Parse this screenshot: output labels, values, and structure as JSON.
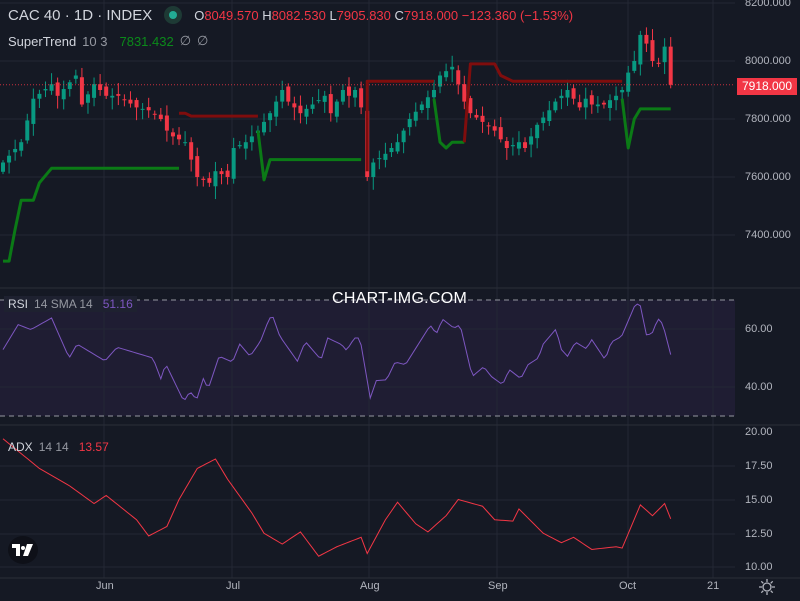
{
  "header": {
    "symbol": "CAC 40 · 1D · INDEX",
    "open_label": "O",
    "open": "8049.570",
    "high_label": "H",
    "high": "8082.530",
    "low_label": "L",
    "low": "7905.830",
    "close_label": "C",
    "close": "7918.000",
    "change": "−123.360 (−1.53%)"
  },
  "supertrend": {
    "name": "SuperTrend",
    "params": "10 3",
    "value": "7831.432",
    "extra1": "∅",
    "extra2": "∅"
  },
  "rsi": {
    "name": "RSI",
    "params": "14 SMA 14",
    "value": "51.16"
  },
  "adx": {
    "name": "ADX",
    "params": "14 14",
    "value": "13.57"
  },
  "watermark": "CHART-IMG.COM",
  "last_price_tag": "7918.000",
  "price_axis": [
    "8200.000",
    "8000.000",
    "7800.000",
    "7600.000",
    "7400.000"
  ],
  "rsi_axis": [
    "60.00",
    "40.00"
  ],
  "adx_axis": [
    "20.00",
    "17.50",
    "15.00",
    "12.50",
    "10.00"
  ],
  "time_axis": [
    "Jun",
    "Jul",
    "Aug",
    "Sep",
    "Oct",
    "21"
  ],
  "colors": {
    "up": "#089981",
    "down": "#f23645",
    "st_up": "#0b7a16",
    "st_down": "#7f0d0d",
    "rsi": "#7e57c2",
    "adx": "#f23645"
  },
  "chart_data": {
    "type": "candlestick",
    "title": "CAC 40 · 1D · INDEX",
    "price_range": [
      7300,
      8220
    ],
    "close_keypoints": [
      [
        0,
        7650
      ],
      [
        3,
        7720
      ],
      [
        5,
        7870
      ],
      [
        8,
        7920
      ],
      [
        9,
        7880
      ],
      [
        12,
        7950
      ],
      [
        13,
        7850
      ],
      [
        15,
        7920
      ],
      [
        17,
        7880
      ],
      [
        19,
        7880
      ],
      [
        22,
        7840
      ],
      [
        24,
        7830
      ],
      [
        26,
        7800
      ],
      [
        27,
        7760
      ],
      [
        28,
        7740
      ],
      [
        30,
        7720
      ],
      [
        32,
        7600
      ],
      [
        34,
        7580
      ],
      [
        35,
        7620
      ],
      [
        37,
        7600
      ],
      [
        38,
        7700
      ],
      [
        40,
        7720
      ],
      [
        42,
        7760
      ],
      [
        44,
        7820
      ],
      [
        46,
        7900
      ],
      [
        47,
        7860
      ],
      [
        49,
        7820
      ],
      [
        51,
        7850
      ],
      [
        53,
        7880
      ],
      [
        54,
        7820
      ],
      [
        56,
        7900
      ],
      [
        57,
        7880
      ],
      [
        58,
        7900
      ],
      [
        59,
        7840
      ],
      [
        60,
        7600
      ],
      [
        61,
        7650
      ],
      [
        63,
        7680
      ],
      [
        65,
        7720
      ],
      [
        67,
        7800
      ],
      [
        69,
        7850
      ],
      [
        71,
        7900
      ],
      [
        72,
        7950
      ],
      [
        74,
        7980
      ],
      [
        75,
        7920
      ],
      [
        76,
        7860
      ],
      [
        77,
        7820
      ],
      [
        79,
        7790
      ],
      [
        81,
        7760
      ],
      [
        83,
        7700
      ],
      [
        85,
        7720
      ],
      [
        86,
        7700
      ],
      [
        88,
        7780
      ],
      [
        90,
        7830
      ],
      [
        91,
        7860
      ],
      [
        93,
        7900
      ],
      [
        95,
        7840
      ],
      [
        96,
        7870
      ],
      [
        97,
        7850
      ],
      [
        99,
        7850
      ],
      [
        101,
        7880
      ],
      [
        102,
        7900
      ],
      [
        103,
        7960
      ],
      [
        104,
        8000
      ],
      [
        105,
        8090
      ],
      [
        106,
        8060
      ],
      [
        107,
        8000
      ],
      [
        108,
        7990
      ],
      [
        109,
        8049.57
      ],
      [
        110,
        7918
      ]
    ],
    "last_bar": {
      "open": 8049.57,
      "high": 8082.53,
      "low": 7905.83,
      "close": 7918.0
    },
    "supertrend_segments": [
      {
        "dir": "up",
        "points": [
          [
            0,
            7310
          ],
          [
            1,
            7310
          ],
          [
            2,
            7420
          ],
          [
            3,
            7520
          ],
          [
            5,
            7520
          ],
          [
            6,
            7580
          ],
          [
            8,
            7630
          ],
          [
            29,
            7630
          ]
        ]
      },
      {
        "dir": "down",
        "points": [
          [
            29,
            7820
          ],
          [
            30,
            7820
          ],
          [
            31,
            7810
          ],
          [
            42,
            7810
          ]
        ]
      },
      {
        "dir": "up",
        "points": [
          [
            42,
            7760
          ],
          [
            43,
            7590
          ],
          [
            44,
            7660
          ],
          [
            59,
            7660
          ]
        ]
      },
      {
        "dir": "down",
        "points": [
          [
            60,
            7620
          ],
          [
            60,
            7930
          ],
          [
            71,
            7930
          ]
        ]
      },
      {
        "dir": "up",
        "points": [
          [
            71,
            7870
          ],
          [
            72,
            7720
          ],
          [
            73,
            7700
          ],
          [
            74,
            7720
          ],
          [
            76,
            7720
          ]
        ]
      },
      {
        "dir": "down",
        "points": [
          [
            76,
            7720
          ],
          [
            77,
            7990
          ],
          [
            81,
            7990
          ],
          [
            82,
            7950
          ],
          [
            84,
            7930
          ],
          [
            102,
            7930
          ]
        ]
      },
      {
        "dir": "up",
        "points": [
          [
            102,
            7870
          ],
          [
            103,
            7700
          ],
          [
            104,
            7800
          ],
          [
            105,
            7835
          ],
          [
            110,
            7835
          ]
        ]
      }
    ],
    "rsi_keypoints": [
      [
        0,
        52.9
      ],
      [
        2.5,
        61.5
      ],
      [
        4.6,
        59.8
      ],
      [
        8,
        63.8
      ],
      [
        10.9,
        50
      ],
      [
        12.2,
        54.8
      ],
      [
        16.8,
        49
      ],
      [
        18.8,
        53.7
      ],
      [
        24.7,
        50
      ],
      [
        26,
        42.8
      ],
      [
        26.8,
        48
      ],
      [
        29.8,
        35
      ],
      [
        30.8,
        38.5
      ],
      [
        31.9,
        35.6
      ],
      [
        33,
        42.9
      ],
      [
        33.8,
        39.3
      ],
      [
        35.6,
        50.6
      ],
      [
        37.8,
        48.6
      ],
      [
        39,
        54.8
      ],
      [
        40.7,
        50.6
      ],
      [
        42.4,
        55.7
      ],
      [
        43.9,
        63.8
      ],
      [
        44.5,
        64
      ],
      [
        45.6,
        57.5
      ],
      [
        48.5,
        48.9
      ],
      [
        49.8,
        55.7
      ],
      [
        52.4,
        49.4
      ],
      [
        53.5,
        56.9
      ],
      [
        55.8,
        54.6
      ],
      [
        56.6,
        52.6
      ],
      [
        57.9,
        56.9
      ],
      [
        58.8,
        56.9
      ],
      [
        60.5,
        36.2
      ],
      [
        61.5,
        42.2
      ],
      [
        63.2,
        42.5
      ],
      [
        64.6,
        48.6
      ],
      [
        66.3,
        47.7
      ],
      [
        70.4,
        61.3
      ],
      [
        71.4,
        58.3
      ],
      [
        72.4,
        63.4
      ],
      [
        74.3,
        60.3
      ],
      [
        75.3,
        61.5
      ],
      [
        77.3,
        43.6
      ],
      [
        79.2,
        47
      ],
      [
        80.4,
        43.7
      ],
      [
        82.3,
        40.8
      ],
      [
        83.4,
        46
      ],
      [
        85.3,
        42.9
      ],
      [
        86.5,
        47.7
      ],
      [
        88.2,
        50
      ],
      [
        89,
        54.8
      ],
      [
        91.1,
        60
      ],
      [
        92,
        52.9
      ],
      [
        93,
        50.6
      ],
      [
        94.3,
        55.5
      ],
      [
        96.1,
        53.2
      ],
      [
        97,
        56.3
      ],
      [
        99.2,
        49.4
      ],
      [
        100.2,
        55.5
      ],
      [
        101.9,
        57.4
      ],
      [
        104.1,
        68.2
      ],
      [
        104.9,
        69
      ],
      [
        106,
        58
      ],
      [
        106.9,
        58.3
      ],
      [
        107.9,
        63.6
      ],
      [
        108.7,
        61.7
      ],
      [
        110,
        51.16
      ]
    ],
    "rsi_levels": [
      70,
      30
    ],
    "adx_keypoints": [
      [
        0,
        19.5
      ],
      [
        6,
        17.3
      ],
      [
        11,
        16
      ],
      [
        15,
        14.7
      ],
      [
        17,
        15.3
      ],
      [
        22,
        13.5
      ],
      [
        24,
        12.3
      ],
      [
        27,
        13
      ],
      [
        29,
        15
      ],
      [
        32,
        17.3
      ],
      [
        35,
        18
      ],
      [
        37,
        16.5
      ],
      [
        41,
        14
      ],
      [
        43,
        12.5
      ],
      [
        46,
        11.7
      ],
      [
        49,
        12.6
      ],
      [
        52,
        10.8
      ],
      [
        55,
        11.5
      ],
      [
        59,
        12.2
      ],
      [
        60,
        11
      ],
      [
        63,
        13.5
      ],
      [
        65,
        14.8
      ],
      [
        68,
        13.2
      ],
      [
        70,
        12.6
      ],
      [
        73,
        13.8
      ],
      [
        75,
        15
      ],
      [
        79,
        14.5
      ],
      [
        81,
        13.5
      ],
      [
        84,
        13.4
      ],
      [
        85,
        14.3
      ],
      [
        89,
        12.5
      ],
      [
        92,
        11.8
      ],
      [
        94,
        12.2
      ],
      [
        97,
        11.3
      ],
      [
        101,
        11.5
      ],
      [
        102,
        11.4
      ],
      [
        105,
        14.6
      ],
      [
        107,
        13.8
      ],
      [
        109,
        14.7
      ],
      [
        110,
        13.57
      ]
    ]
  }
}
